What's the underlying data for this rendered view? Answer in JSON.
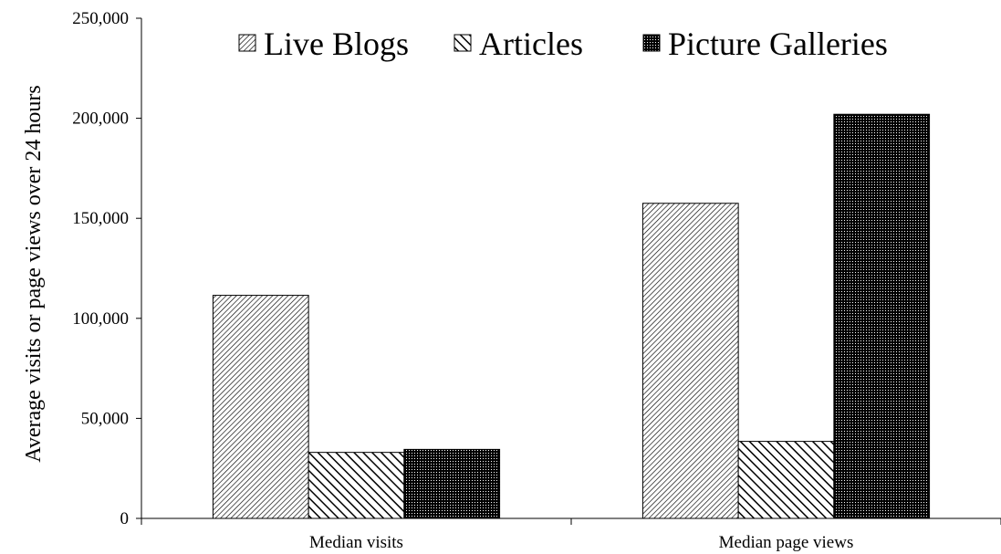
{
  "chart_data": {
    "type": "bar",
    "title": "",
    "xlabel": "",
    "ylabel": "Average visits or page views over 24 hours",
    "categories": [
      "Median visits",
      "Median page views"
    ],
    "series": [
      {
        "name": "Live Blogs",
        "values": [
          111500,
          157500
        ],
        "pattern": "fine-diagonal"
      },
      {
        "name": "Articles",
        "values": [
          33000,
          38500
        ],
        "pattern": "coarse-diagonal"
      },
      {
        "name": "Picture Galleries",
        "values": [
          34500,
          202000
        ],
        "pattern": "dense-dots"
      }
    ],
    "ylim": [
      0,
      250000
    ],
    "yticks": [
      0,
      50000,
      100000,
      150000,
      200000,
      250000
    ],
    "ytick_labels": [
      "0",
      "50,000",
      "100,000",
      "150,000",
      "200,000",
      "250,000"
    ],
    "grid": false,
    "legend_position": "top"
  }
}
